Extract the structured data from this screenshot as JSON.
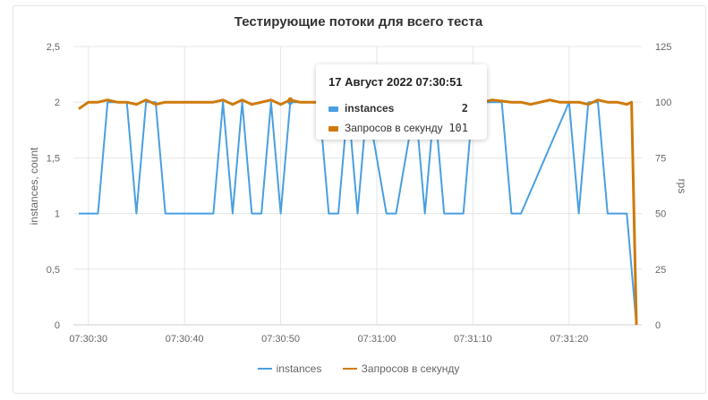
{
  "chart_data": {
    "type": "line",
    "title": "Тестирующие потоки для всего теста",
    "ylabel_left": "instances, count",
    "ylabel_right": "rps",
    "ylim_left": [
      0,
      2.5
    ],
    "ylim_right": [
      0,
      125
    ],
    "yticks_left": [
      "0",
      "0,5",
      "1",
      "1,5",
      "2",
      "2,5"
    ],
    "yticks_right": [
      "0",
      "25",
      "50",
      "75",
      "100",
      "125"
    ],
    "x_range": [
      "07:30:29",
      "07:31:27"
    ],
    "xticks": [
      "07:30:30",
      "07:30:40",
      "07:30:50",
      "07:31:00",
      "07:31:10",
      "07:31:20"
    ],
    "grid": true,
    "legend_position": "bottom",
    "series": [
      {
        "name": "instances",
        "axis": "left",
        "color": "#4a9fe0",
        "x": [
          "07:30:29",
          "07:30:31",
          "07:30:32",
          "07:30:34",
          "07:30:35",
          "07:30:36",
          "07:30:37",
          "07:30:38",
          "07:30:43",
          "07:30:44",
          "07:30:45",
          "07:30:46",
          "07:30:47",
          "07:30:48",
          "07:30:49",
          "07:30:50",
          "07:30:51",
          "07:30:54",
          "07:30:55",
          "07:30:56",
          "07:30:57",
          "07:30:58",
          "07:30:59",
          "07:31:01",
          "07:31:02",
          "07:31:04",
          "07:31:05",
          "07:31:06",
          "07:31:07",
          "07:31:09",
          "07:31:10",
          "07:31:13",
          "07:31:14",
          "07:31:15",
          "07:31:20",
          "07:31:21",
          "07:31:22",
          "07:31:23",
          "07:31:24",
          "07:31:25",
          "07:31:26",
          "07:31:27"
        ],
        "values": [
          1,
          1,
          2,
          2,
          1,
          2,
          2,
          1,
          1,
          2,
          1,
          2,
          1,
          1,
          2,
          1,
          2,
          2,
          1,
          1,
          2,
          1,
          2,
          1,
          1,
          2,
          1,
          2,
          1,
          1,
          2,
          2,
          1,
          1,
          2,
          1,
          2,
          2,
          1,
          1,
          1,
          0
        ]
      },
      {
        "name": "Запросов в секунду",
        "axis": "right",
        "color": "#cf7a0b",
        "x": [
          "07:30:29",
          "07:30:30",
          "07:30:31",
          "07:30:32",
          "07:30:33",
          "07:30:34",
          "07:30:35",
          "07:30:36",
          "07:30:37",
          "07:30:38",
          "07:30:40",
          "07:30:43",
          "07:30:44",
          "07:30:45",
          "07:30:46",
          "07:30:47",
          "07:30:48",
          "07:30:49",
          "07:30:50",
          "07:30:51",
          "07:30:52",
          "07:30:55",
          "07:31:00",
          "07:31:03",
          "07:31:04",
          "07:31:05",
          "07:31:08",
          "07:31:09",
          "07:31:10",
          "07:31:11",
          "07:31:12",
          "07:31:14",
          "07:31:15",
          "07:31:16",
          "07:31:18",
          "07:31:19",
          "07:31:21",
          "07:31:22",
          "07:31:23",
          "07:31:24",
          "07:31:25",
          "07:31:26",
          "07:31:26.5",
          "07:31:27"
        ],
        "values": [
          97,
          100,
          100,
          101,
          100,
          100,
          99,
          101,
          99,
          100,
          100,
          100,
          101,
          99,
          101,
          99,
          100,
          101,
          99,
          101,
          100,
          100,
          100,
          101,
          99,
          101,
          100,
          99,
          101,
          100,
          101,
          100,
          100,
          99,
          101,
          100,
          100,
          99,
          101,
          100,
          100,
          99,
          100,
          0
        ]
      }
    ]
  },
  "tooltip": {
    "title": "17 Август 2022 07:30:51",
    "rows": [
      {
        "label": "instances",
        "value": "2",
        "color": "#4a9fe0"
      },
      {
        "label": "Запросов в секунду",
        "value": "101",
        "color": "#cf7a0b"
      }
    ]
  }
}
